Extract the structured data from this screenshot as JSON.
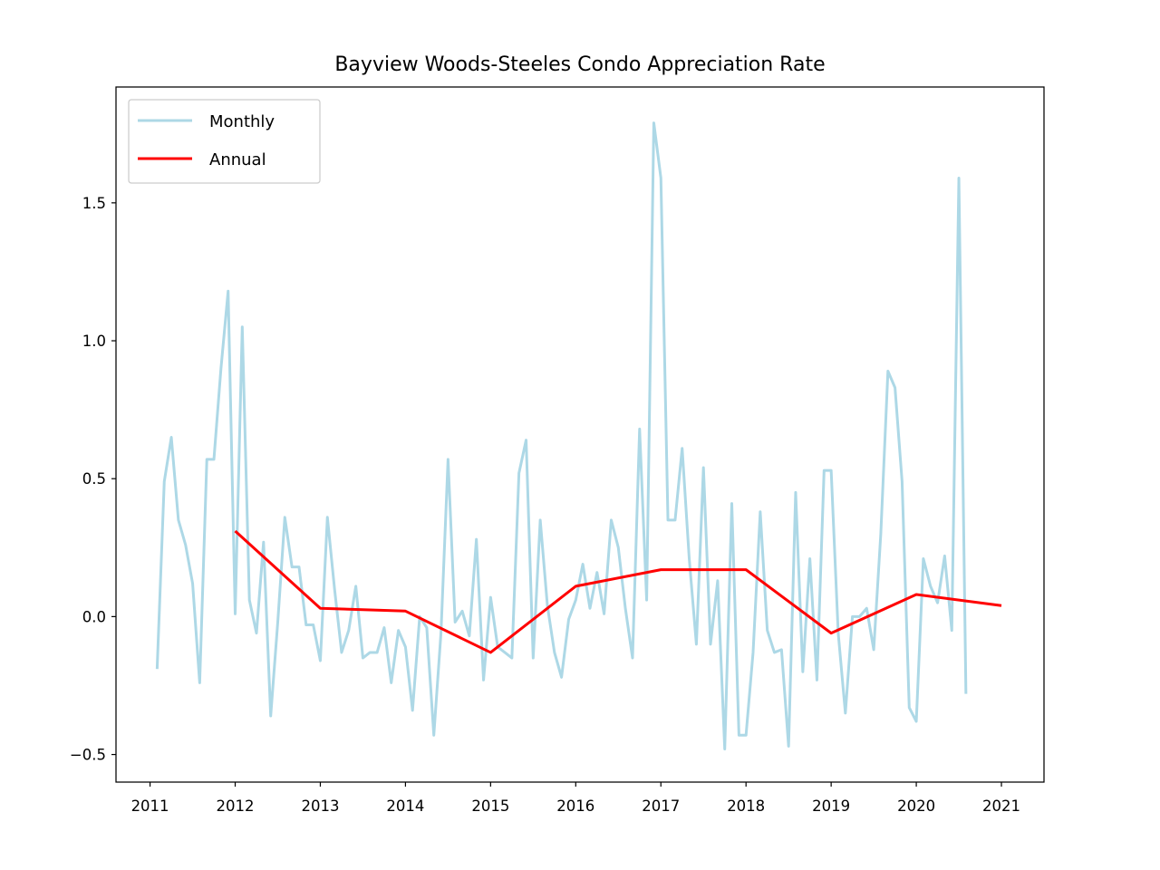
{
  "chart_data": {
    "type": "line",
    "title": "Bayview Woods-Steeles Condo Appreciation Rate",
    "xlabel": "",
    "ylabel": "",
    "xlim": [
      2010.6,
      2021.5
    ],
    "ylim": [
      -0.6,
      1.92
    ],
    "x_ticks": [
      2011,
      2012,
      2013,
      2014,
      2015,
      2016,
      2017,
      2018,
      2019,
      2020,
      2021
    ],
    "y_ticks": [
      -0.5,
      0.0,
      0.5,
      1.0,
      1.5
    ],
    "y_tick_labels": [
      "−0.5",
      "0.0",
      "0.5",
      "1.0",
      "1.5"
    ],
    "grid": false,
    "legend_position": "upper-left",
    "series": [
      {
        "name": "Monthly",
        "color": "#add8e6",
        "x": [
          2011.083,
          2011.167,
          2011.25,
          2011.333,
          2011.417,
          2011.5,
          2011.583,
          2011.667,
          2011.75,
          2011.833,
          2011.917,
          2012.0,
          2012.083,
          2012.167,
          2012.25,
          2012.333,
          2012.417,
          2012.5,
          2012.583,
          2012.667,
          2012.75,
          2012.833,
          2012.917,
          2013.0,
          2013.083,
          2013.167,
          2013.25,
          2013.333,
          2013.417,
          2013.5,
          2013.583,
          2013.667,
          2013.75,
          2013.833,
          2013.917,
          2014.0,
          2014.083,
          2014.167,
          2014.25,
          2014.333,
          2014.417,
          2014.5,
          2014.583,
          2014.667,
          2014.75,
          2014.833,
          2014.917,
          2015.0,
          2015.083,
          2015.167,
          2015.25,
          2015.333,
          2015.417,
          2015.5,
          2015.583,
          2015.667,
          2015.75,
          2015.833,
          2015.917,
          2016.0,
          2016.083,
          2016.167,
          2016.25,
          2016.333,
          2016.417,
          2016.5,
          2016.583,
          2016.667,
          2016.75,
          2016.833,
          2016.917,
          2017.0,
          2017.083,
          2017.167,
          2017.25,
          2017.333,
          2017.417,
          2017.5,
          2017.583,
          2017.667,
          2017.75,
          2017.833,
          2017.917,
          2018.0,
          2018.083,
          2018.167,
          2018.25,
          2018.333,
          2018.417,
          2018.5,
          2018.583,
          2018.667,
          2018.75,
          2018.833,
          2018.917,
          2019.0,
          2019.083,
          2019.167,
          2019.25,
          2019.333,
          2019.417,
          2019.5,
          2019.583,
          2019.667,
          2019.75,
          2019.833,
          2019.917,
          2020.0,
          2020.083,
          2020.167,
          2020.25,
          2020.333,
          2020.417,
          2020.5,
          2020.583
        ],
        "values": [
          -0.19,
          0.49,
          0.65,
          0.35,
          0.26,
          0.12,
          -0.24,
          0.57,
          0.57,
          0.9,
          1.18,
          0.01,
          1.05,
          0.06,
          -0.06,
          0.27,
          -0.36,
          -0.02,
          0.36,
          0.18,
          0.18,
          -0.03,
          -0.03,
          -0.16,
          0.36,
          0.1,
          -0.13,
          -0.05,
          0.11,
          -0.15,
          -0.13,
          -0.13,
          -0.04,
          -0.24,
          -0.05,
          -0.11,
          -0.34,
          0.0,
          -0.04,
          -0.43,
          -0.06,
          0.57,
          -0.02,
          0.02,
          -0.07,
          0.28,
          -0.23,
          0.07,
          -0.11,
          -0.13,
          -0.15,
          0.52,
          0.64,
          -0.15,
          0.35,
          0.04,
          -0.13,
          -0.22,
          -0.01,
          0.06,
          0.19,
          0.03,
          0.16,
          0.01,
          0.35,
          0.25,
          0.03,
          -0.15,
          0.68,
          0.06,
          1.79,
          1.59,
          0.35,
          0.35,
          0.61,
          0.21,
          -0.1,
          0.54,
          -0.1,
          0.13,
          -0.48,
          0.41,
          -0.43,
          -0.43,
          -0.13,
          0.38,
          -0.05,
          -0.13,
          -0.12,
          -0.47,
          0.45,
          -0.2,
          0.21,
          -0.23,
          0.53,
          0.53,
          -0.06,
          -0.35,
          0.0,
          0.0,
          0.03,
          -0.12,
          0.3,
          0.89,
          0.83,
          0.49,
          -0.33,
          -0.38,
          0.21,
          0.11,
          0.05,
          0.22,
          -0.05,
          1.59,
          -0.28
        ]
      },
      {
        "name": "Annual",
        "color": "#ff0000",
        "x": [
          2012,
          2013,
          2014,
          2015,
          2016,
          2017,
          2018,
          2019,
          2020,
          2021
        ],
        "values": [
          0.31,
          0.03,
          0.02,
          -0.13,
          0.11,
          0.17,
          0.17,
          -0.06,
          0.08,
          0.04
        ]
      }
    ]
  }
}
